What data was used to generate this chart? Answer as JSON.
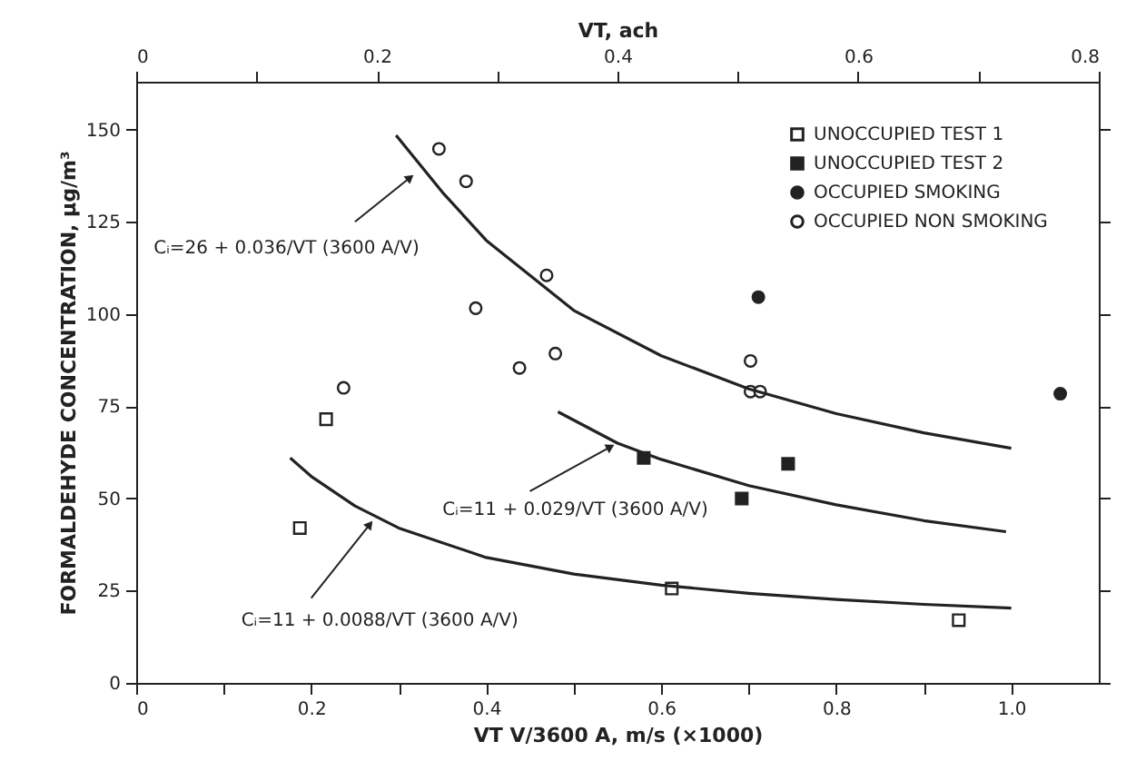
{
  "chart_data": {
    "type": "scatter",
    "xlabel": "VT V/3600 A, m/s (×1000)",
    "x2label": "VT, ach",
    "ylabel": "FORMALDEHYDE CONCENTRATION, μg/m³",
    "xlim": [
      0,
      1.1
    ],
    "ylim": [
      0,
      163
    ],
    "x2lim": [
      0,
      0.8
    ],
    "xticks": [
      0,
      {
        "value": 0.1,
        "label": null
      },
      0.2,
      {
        "value": 0.3,
        "label": null
      },
      0.4,
      {
        "value": 0.5,
        "label": null
      },
      0.6,
      {
        "value": 0.7,
        "label": null
      },
      0.8,
      {
        "value": 0.9,
        "label": null
      },
      {
        "value": 1.0,
        "label": "1.0"
      }
    ],
    "x2ticks": [
      0,
      {
        "value": 0.1,
        "label": null
      },
      0.2,
      {
        "value": 0.3,
        "label": null
      },
      0.4,
      {
        "value": 0.5,
        "label": null
      },
      0.6,
      {
        "value": 0.7,
        "label": null
      },
      0.8
    ],
    "yticks": [
      0,
      25,
      50,
      75,
      100,
      125,
      150
    ],
    "grid": false,
    "legend": "top right",
    "series": [
      {
        "name": "UNOCCUPIED  TEST 1",
        "marker": "square",
        "color": "#ffffff",
        "x": [
          0.187,
          0.217,
          0.612,
          0.94
        ],
        "values": [
          42,
          71.5,
          25.6,
          17
        ]
      },
      {
        "name": "UNOCCUPIED  TEST 2",
        "marker": "square",
        "color": "#222222",
        "x": [
          0.58,
          0.692,
          0.745
        ],
        "values": [
          61,
          50,
          59.4
        ]
      },
      {
        "name": "OCCUPIED  SMOKING",
        "marker": "circle",
        "color": "#222222",
        "x": [
          0.711,
          1.056
        ],
        "values": [
          104.6,
          78.4
        ]
      },
      {
        "name": "OCCUPIED  NON SMOKING",
        "marker": "circle",
        "color": "#ffffff",
        "x": [
          0.346,
          0.377,
          0.388,
          0.469,
          0.438,
          0.479,
          0.702,
          0.702,
          0.713,
          0.237
        ],
        "values": [
          144.8,
          136,
          101.6,
          110.5,
          85.4,
          89.3,
          87.3,
          79,
          79,
          80
        ]
      },
      {
        "type": "line",
        "color": "#222222",
        "x": [
          0.297,
          0.35,
          0.4,
          0.5,
          0.6,
          0.7,
          0.8,
          0.9,
          1.0
        ],
        "values": [
          148.5,
          133,
          120,
          101,
          88.7,
          79.7,
          73,
          67.8,
          63.6
        ]
      },
      {
        "type": "line",
        "color": "#222222",
        "x": [
          0.482,
          0.55,
          0.6,
          0.7,
          0.8,
          0.9,
          0.994
        ],
        "values": [
          73.5,
          65,
          60.6,
          53.5,
          48.3,
          44,
          41
        ]
      },
      {
        "type": "line",
        "color": "#222222",
        "x": [
          0.176,
          0.2,
          0.25,
          0.3,
          0.4,
          0.5,
          0.6,
          0.7,
          0.8,
          0.9,
          1.0
        ],
        "values": [
          61,
          56,
          48,
          42,
          34,
          29.5,
          26.5,
          24.3,
          22.6,
          21.3,
          20.3
        ]
      }
    ],
    "annotations": [
      {
        "text": "Cᵢ=26 + 0.036/VT (3600 A/V)",
        "x": 0.313,
        "y": 137
      },
      {
        "text": "Cᵢ=11 + 0.029/VT (3600 A/V)",
        "x": 0.542,
        "y": 64
      },
      {
        "text": "Cᵢ=11 + 0.0088/VT (3600 A/V)",
        "x": 0.267,
        "y": 43
      }
    ]
  }
}
